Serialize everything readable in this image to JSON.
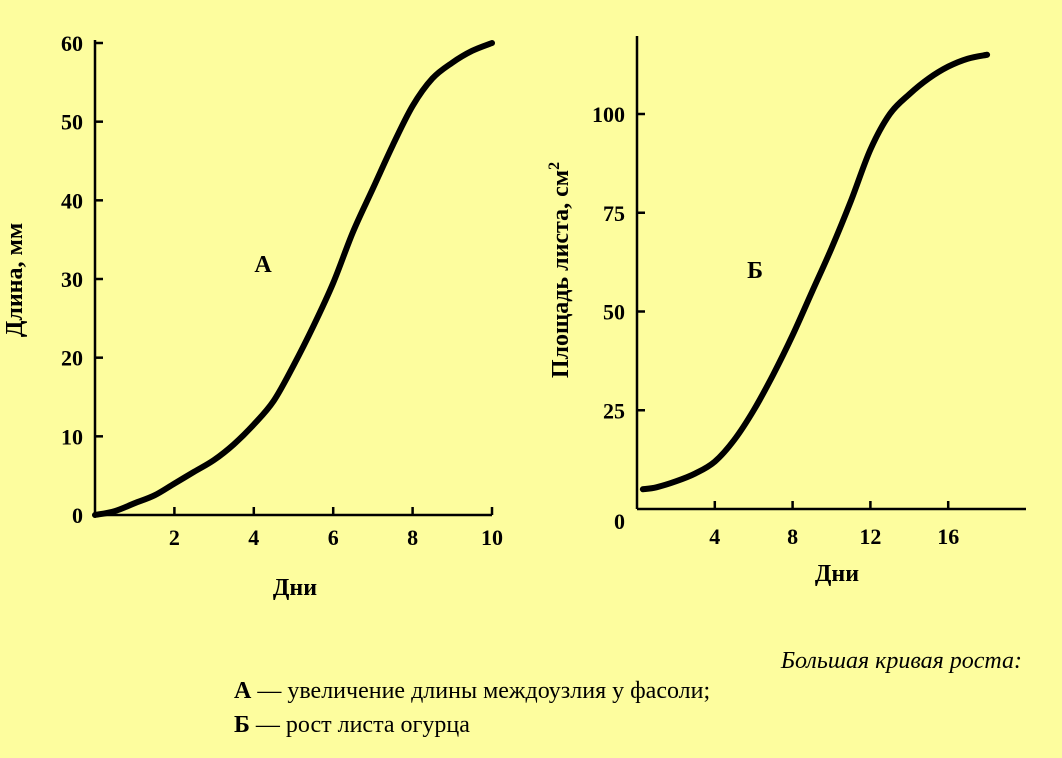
{
  "background_color": "#fdfd9e",
  "chart_data": [
    {
      "type": "line",
      "panel_label": "А",
      "xlabel": "Дни",
      "ylabel": "Длина, мм",
      "xlim": [
        0,
        10
      ],
      "ylim": [
        0,
        60
      ],
      "xticks": [
        2,
        4,
        6,
        8,
        10
      ],
      "yticks": [
        0,
        10,
        20,
        30,
        40,
        50,
        60
      ],
      "x": [
        0,
        0.5,
        1,
        1.5,
        2,
        2.5,
        3,
        3.5,
        4,
        4.5,
        5,
        5.5,
        6,
        6.5,
        7,
        7.5,
        8,
        8.5,
        9,
        9.5,
        10
      ],
      "y": [
        0,
        0.5,
        1.5,
        2.5,
        4,
        5.5,
        7,
        9,
        11.5,
        14.5,
        19,
        24,
        29.5,
        36,
        41.5,
        47,
        52,
        55.5,
        57.5,
        59,
        60
      ],
      "grid": false
    },
    {
      "type": "line",
      "panel_label": "Б",
      "xlabel": "Дни",
      "ylabel": "Площадь листа, см²",
      "xlim": [
        0,
        20
      ],
      "ylim": [
        0,
        120
      ],
      "xticks": [
        4,
        8,
        12,
        16
      ],
      "yticks": [
        25,
        50,
        75,
        100
      ],
      "ytick_zero_label": "0",
      "x": [
        0.3,
        1,
        2,
        3,
        4,
        5,
        6,
        7,
        8,
        9,
        10,
        11,
        12,
        13,
        14,
        15,
        16,
        17,
        18
      ],
      "y": [
        5,
        5.5,
        7,
        9,
        12,
        17.5,
        25,
        34,
        44,
        55,
        66,
        78,
        91,
        100,
        105,
        109,
        112,
        114,
        115
      ],
      "grid": false
    }
  ],
  "caption": {
    "title": "Большая кривая роста:",
    "items": [
      {
        "key": "А",
        "text": " — увеличение длины междоузлия у фасоли;"
      },
      {
        "key": "Б",
        "text": " — рост листа огурца"
      }
    ]
  }
}
